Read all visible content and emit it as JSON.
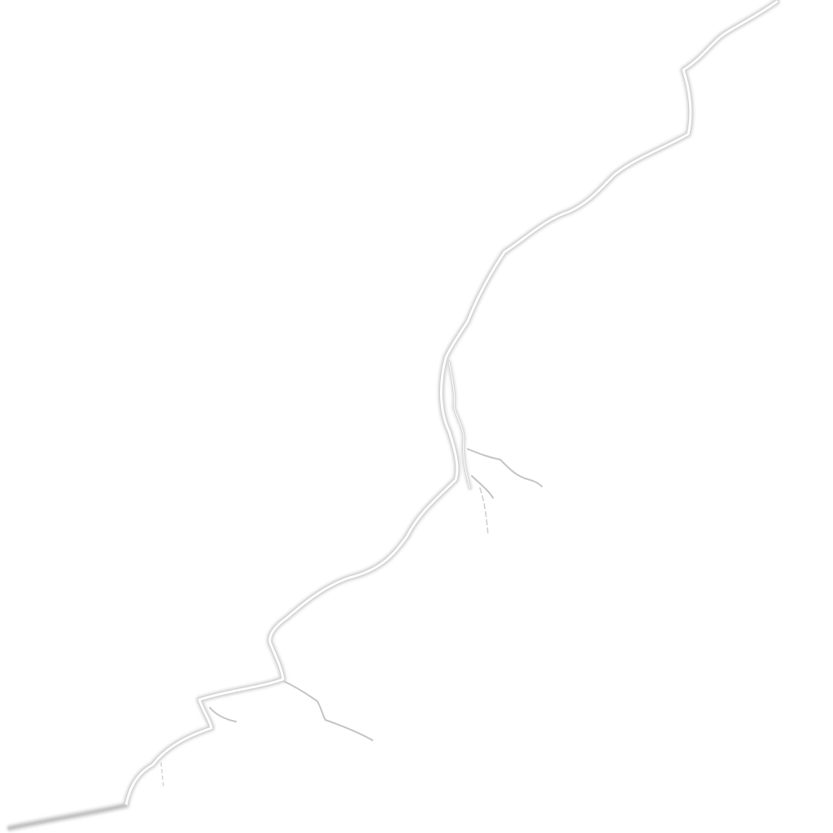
{
  "scene": {
    "background_color": "#ffffff",
    "crack_fill_color": "#ffffff",
    "crack_edge_color": "#c8c8c8",
    "crack_shadow_color": "#e6e6e6",
    "subject": "crack-lines"
  }
}
